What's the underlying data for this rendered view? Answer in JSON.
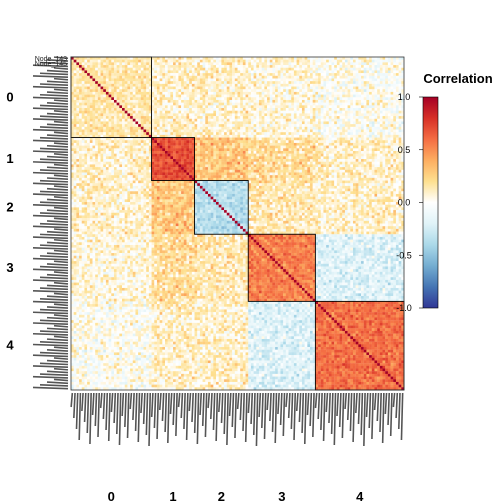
{
  "chart_data": {
    "type": "heatmap",
    "title": "",
    "value_range": [
      -1.0,
      1.0
    ],
    "node_label_prefix": "Node_",
    "row_labels_visible": [
      "Node_143",
      "Node_145"
    ],
    "clusters": [
      {
        "name": "0",
        "start": 0,
        "end": 30
      },
      {
        "name": "1",
        "start": 30,
        "end": 46
      },
      {
        "name": "2",
        "start": 46,
        "end": 66
      },
      {
        "name": "3",
        "start": 66,
        "end": 91
      },
      {
        "name": "4",
        "start": 91,
        "end": 124
      }
    ],
    "n_nodes": 124,
    "within_cluster_mean": [
      0.15,
      0.7,
      -0.35,
      0.55,
      0.6
    ],
    "between_cluster_mean": 0.1,
    "between_cluster_overrides": [
      {
        "a": 1,
        "b": 2,
        "mean": 0.3
      },
      {
        "a": 1,
        "b": 3,
        "mean": 0.2
      },
      {
        "a": 2,
        "b": 3,
        "mean": 0.15
      },
      {
        "a": 3,
        "b": 4,
        "mean": -0.2
      },
      {
        "a": 0,
        "b": 4,
        "mean": 0.0
      },
      {
        "a": 0,
        "b": 3,
        "mean": 0.05
      }
    ],
    "diagonal_value": 1.0,
    "colorscale": [
      "#313695",
      "#4575b4",
      "#74add1",
      "#abd9e9",
      "#e0f3f8",
      "#ffffff",
      "#fee090",
      "#fdae61",
      "#f46d43",
      "#d73027",
      "#a50026"
    ],
    "legend": {
      "title": "Correlation",
      "ticks": [
        "1.0",
        "0.5",
        "0.0",
        "-0.5",
        "-1.0"
      ],
      "tick_values": [
        1.0,
        0.5,
        0.0,
        -0.5,
        -1.0
      ],
      "placement": "right"
    },
    "grid": false
  }
}
